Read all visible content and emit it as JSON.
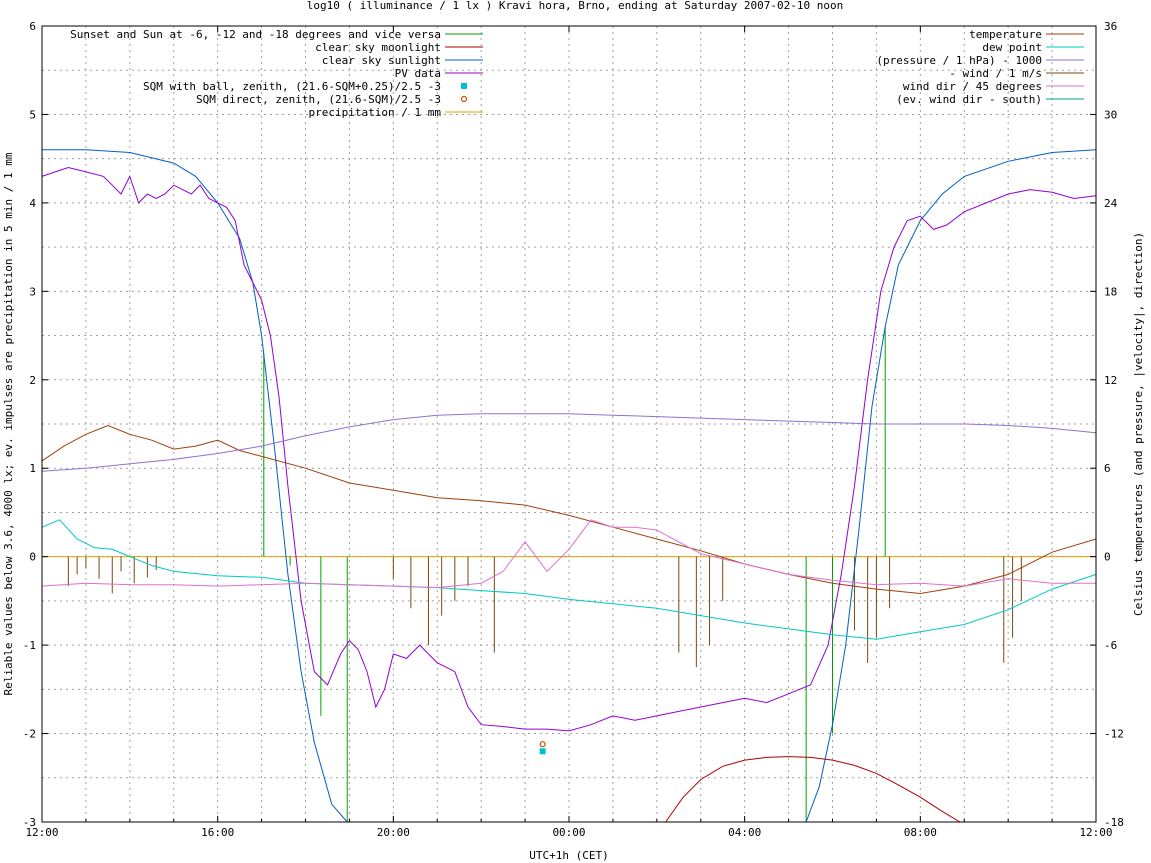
{
  "chart_data": {
    "type": "line",
    "title": "log10 ( illuminance / 1 lx ) Kravi hora, Brno, ending at Saturday 2007-02-10 noon",
    "xlabel": "UTC+1h (CET)",
    "ylabel_left": "Reliable values below 3.6, 4000 lx; ev. impulses are precipitation in 5 min / 1 mm",
    "ylabel_right": "Celsius temperatures (and pressure, |velocity|, direction)",
    "x_unit": "hours since 12:00",
    "xlim": [
      0,
      24
    ],
    "ylim_left": [
      -3,
      6
    ],
    "ylim_right": [
      -18,
      36
    ],
    "x_ticks": [
      {
        "x": 0,
        "label": "12:00"
      },
      {
        "x": 4,
        "label": "16:00"
      },
      {
        "x": 8,
        "label": "20:00"
      },
      {
        "x": 12,
        "label": "00:00"
      },
      {
        "x": 16,
        "label": "04:00"
      },
      {
        "x": 20,
        "label": "08:00"
      },
      {
        "x": 24,
        "label": "12:00"
      }
    ],
    "y_ticks_left": [
      "-3",
      "-2",
      "-1",
      "0",
      "1",
      "2",
      "3",
      "4",
      "5",
      "6"
    ],
    "y_ticks_right": [
      "-18",
      "-12",
      "-6",
      "0",
      "6",
      "12",
      "18",
      "24",
      "30",
      "36"
    ],
    "grid": true,
    "legend_left": [
      {
        "name": "Sunset and Sun at -6, -12 and -18 degrees and vice versa",
        "color": "#00a000",
        "style": "line"
      },
      {
        "name": "clear sky moonlight",
        "color": "#b00000",
        "style": "line"
      },
      {
        "name": "clear sky sunlight",
        "color": "#0060c0",
        "style": "line"
      },
      {
        "name": "PV data",
        "color": "#9400d3",
        "style": "line"
      },
      {
        "name": "SQM with ball, zenith, (21.6-SQM+0.25)/2.5 -3",
        "color": "#00c0d0",
        "style": "square"
      },
      {
        "name": "SQM direct, zenith, (21.6-SQM)/2.5 -3",
        "color": "#c05000",
        "style": "circle"
      },
      {
        "name": "precipitation / 1 mm",
        "color": "#e0a000",
        "style": "line"
      }
    ],
    "legend_right": [
      {
        "name": "temperature",
        "color": "#a0400a",
        "style": "line"
      },
      {
        "name": "dew point",
        "color": "#00c8c8",
        "style": "line"
      },
      {
        "name": "(pressure / 1 hPa) - 1000",
        "color": "#9070d0",
        "style": "line"
      },
      {
        "name": "- wind / 1 m/s",
        "color": "#7a4a10",
        "style": "line"
      },
      {
        "name": "wind dir / 45 degrees",
        "color": "#e070d0",
        "style": "line"
      },
      {
        "name": "(ev. wind dir - south)",
        "color": "#00a090",
        "style": "line"
      }
    ],
    "sun_markers": [
      {
        "x": 5.05,
        "y": 2.3
      },
      {
        "x": 5.65,
        "y": -0.1
      },
      {
        "x": 6.35,
        "y": -1.8
      },
      {
        "x": 6.95,
        "y": -3
      },
      {
        "x": 17.4,
        "y": -3
      },
      {
        "x": 18.0,
        "y": -2.0
      },
      {
        "x": 18.6,
        "y": 0
      },
      {
        "x": 19.2,
        "y": 2.6
      }
    ],
    "series": [
      {
        "name": "clear sky sunlight",
        "axis": "left",
        "color": "#0060c0",
        "x": [
          0,
          1,
          2,
          3,
          3.5,
          4,
          4.5,
          4.8,
          5.0,
          5.3,
          5.6,
          5.9,
          6.2,
          6.6,
          6.95,
          7.0
        ],
        "y": [
          4.6,
          4.6,
          4.57,
          4.45,
          4.3,
          4.0,
          3.6,
          3.1,
          2.5,
          1.2,
          -0.2,
          -1.3,
          -2.1,
          -2.8,
          -3.0,
          -3.05
        ]
      },
      {
        "name": "clear sky sunlight",
        "axis": "left",
        "color": "#0060c0",
        "x": [
          17.4,
          17.7,
          18.0,
          18.3,
          18.6,
          18.9,
          19.2,
          19.5,
          20.0,
          20.5,
          21.0,
          22,
          23,
          24
        ],
        "y": [
          -3.05,
          -2.6,
          -1.9,
          -1.0,
          0.3,
          1.7,
          2.6,
          3.3,
          3.8,
          4.1,
          4.3,
          4.47,
          4.57,
          4.6
        ]
      },
      {
        "name": "clear sky moonlight",
        "axis": "left",
        "color": "#b00000",
        "x": [
          14.2,
          14.6,
          15.0,
          15.5,
          16.0,
          16.5,
          17.0,
          17.5,
          18.0,
          18.5,
          19.0,
          19.5,
          20.0,
          20.5,
          20.9
        ],
        "y": [
          -3.0,
          -2.72,
          -2.52,
          -2.37,
          -2.3,
          -2.27,
          -2.26,
          -2.27,
          -2.3,
          -2.36,
          -2.45,
          -2.58,
          -2.72,
          -2.88,
          -3.0
        ]
      },
      {
        "name": "PV data",
        "axis": "left",
        "color": "#9400d3",
        "x": [
          0,
          0.3,
          0.6,
          1.0,
          1.4,
          1.6,
          1.8,
          2.0,
          2.2,
          2.4,
          2.6,
          2.8,
          3.0,
          3.2,
          3.4,
          3.6,
          3.8,
          4.0,
          4.2,
          4.4,
          4.6,
          4.8,
          5.0,
          5.2,
          5.4,
          5.6,
          5.9,
          6.2,
          6.5,
          6.8,
          7.0,
          7.2,
          7.4,
          7.6,
          7.8,
          8.0,
          8.3,
          8.6,
          9.0,
          9.4,
          9.7,
          10.0,
          10.5,
          11.0,
          11.5,
          12.0,
          12.5,
          13.0,
          13.5,
          14.0,
          14.5,
          15.0,
          15.5,
          16.0,
          16.5,
          17.0,
          17.5,
          17.9,
          18.2,
          18.5,
          18.8,
          19.1,
          19.4,
          19.7,
          20.0,
          20.3,
          20.6,
          21.0,
          21.5,
          22.0,
          22.5,
          23.0,
          23.5,
          24.0
        ],
        "y": [
          4.3,
          4.35,
          4.4,
          4.35,
          4.3,
          4.2,
          4.1,
          4.3,
          4.0,
          4.1,
          4.05,
          4.1,
          4.2,
          4.15,
          4.1,
          4.2,
          4.05,
          4.0,
          3.95,
          3.8,
          3.3,
          3.1,
          2.9,
          2.5,
          1.8,
          0.8,
          -0.5,
          -1.3,
          -1.45,
          -1.1,
          -0.95,
          -1.05,
          -1.3,
          -1.7,
          -1.5,
          -1.1,
          -1.15,
          -1.0,
          -1.2,
          -1.3,
          -1.7,
          -1.9,
          -1.92,
          -1.95,
          -1.95,
          -1.97,
          -1.9,
          -1.8,
          -1.85,
          -1.8,
          -1.75,
          -1.7,
          -1.65,
          -1.6,
          -1.65,
          -1.55,
          -1.45,
          -1.0,
          -0.2,
          0.8,
          2.0,
          3.0,
          3.5,
          3.8,
          3.85,
          3.7,
          3.75,
          3.9,
          4.0,
          4.1,
          4.15,
          4.12,
          4.05,
          4.08
        ]
      },
      {
        "name": "temperature",
        "axis": "right",
        "color": "#a0400a",
        "x": [
          0,
          0.5,
          1.0,
          1.5,
          2.0,
          2.5,
          3.0,
          3.5,
          4.0,
          4.5,
          5.0,
          6.0,
          7.0,
          8.0,
          9.0,
          10.0,
          11.0,
          12.0,
          13.0,
          14.0,
          15.0,
          16.0,
          17.0,
          18.0,
          19.0,
          20.0,
          21.0,
          22.0,
          23.0,
          24.0
        ],
        "y": [
          6.5,
          7.5,
          8.3,
          8.9,
          8.3,
          7.9,
          7.3,
          7.5,
          7.9,
          7.2,
          6.8,
          6.0,
          5.0,
          4.5,
          4.0,
          3.8,
          3.5,
          2.8,
          2.0,
          1.2,
          0.4,
          -0.5,
          -1.2,
          -1.8,
          -2.2,
          -2.5,
          -2.0,
          -1.2,
          0.3,
          1.2
        ]
      },
      {
        "name": "dew point",
        "axis": "right",
        "color": "#00c8c8",
        "x": [
          0,
          0.4,
          0.8,
          1.2,
          1.6,
          2.0,
          2.5,
          3.0,
          4.0,
          5.0,
          6.0,
          7.0,
          8.0,
          9.0,
          10.0,
          11.0,
          12.0,
          13.0,
          14.0,
          15.0,
          16.0,
          17.0,
          18.0,
          19.0,
          20.0,
          21.0,
          22.0,
          23.0,
          24.0
        ],
        "y": [
          2.0,
          2.5,
          1.2,
          0.6,
          0.5,
          0.0,
          -0.6,
          -1.0,
          -1.3,
          -1.4,
          -1.8,
          -1.9,
          -2.0,
          -2.1,
          -2.3,
          -2.5,
          -2.9,
          -3.2,
          -3.5,
          -4.0,
          -4.5,
          -4.9,
          -5.3,
          -5.6,
          -5.1,
          -4.6,
          -3.6,
          -2.2,
          -1.2
        ]
      },
      {
        "name": "(pressure / 1 hPa) - 1000",
        "axis": "right",
        "color": "#9070d0",
        "x": [
          0,
          1,
          2,
          3,
          4,
          5,
          6,
          7,
          8,
          9,
          10,
          11,
          12,
          13,
          14,
          15,
          16,
          17,
          18,
          19,
          20,
          21,
          22,
          23,
          24
        ],
        "y": [
          5.8,
          6.0,
          6.3,
          6.6,
          7.0,
          7.5,
          8.2,
          8.8,
          9.3,
          9.6,
          9.7,
          9.7,
          9.7,
          9.6,
          9.5,
          9.4,
          9.3,
          9.2,
          9.1,
          9.0,
          9.0,
          9.0,
          8.9,
          8.7,
          8.4
        ]
      },
      {
        "name": "wind dir / 45 degrees",
        "axis": "right",
        "color": "#e070d0",
        "x": [
          0,
          1,
          2,
          3,
          4,
          5,
          6,
          7,
          8,
          9,
          10,
          10.5,
          11.0,
          11.5,
          12.0,
          12.5,
          13.0,
          13.5,
          14.0,
          14.5,
          15.0,
          16.0,
          17.0,
          18.0,
          19.0,
          20.0,
          21.0,
          22.0,
          23.0,
          24.0
        ],
        "y": [
          -2.0,
          -1.8,
          -1.9,
          -1.9,
          -2.0,
          -1.9,
          -1.8,
          -1.9,
          -2.0,
          -2.1,
          -1.8,
          -1.0,
          1.0,
          -1.0,
          0.5,
          2.5,
          2.0,
          2.0,
          1.8,
          1.0,
          0.2,
          -0.5,
          -1.2,
          -1.6,
          -1.9,
          -1.8,
          -2.0,
          -1.5,
          -1.8,
          -1.8
        ]
      }
    ],
    "wind_impulses": [
      {
        "x": 0.6,
        "y": -2.0
      },
      {
        "x": 0.8,
        "y": -1.2
      },
      {
        "x": 1.0,
        "y": -0.8
      },
      {
        "x": 1.3,
        "y": -1.5
      },
      {
        "x": 1.6,
        "y": -2.5
      },
      {
        "x": 1.8,
        "y": -1.0
      },
      {
        "x": 2.1,
        "y": -1.8
      },
      {
        "x": 2.4,
        "y": -1.4
      },
      {
        "x": 2.6,
        "y": -0.9
      },
      {
        "x": 8.0,
        "y": -1.5
      },
      {
        "x": 8.4,
        "y": -3.5
      },
      {
        "x": 8.8,
        "y": -6.0
      },
      {
        "x": 9.1,
        "y": -4.0
      },
      {
        "x": 9.4,
        "y": -3.0
      },
      {
        "x": 9.7,
        "y": -2.0
      },
      {
        "x": 10.3,
        "y": -6.5
      },
      {
        "x": 14.5,
        "y": -6.5
      },
      {
        "x": 14.9,
        "y": -7.5
      },
      {
        "x": 15.2,
        "y": -6.0
      },
      {
        "x": 15.5,
        "y": -3.0
      },
      {
        "x": 18.5,
        "y": -5.0
      },
      {
        "x": 18.8,
        "y": -7.2
      },
      {
        "x": 19.0,
        "y": -5.5
      },
      {
        "x": 19.3,
        "y": -3.5
      },
      {
        "x": 21.9,
        "y": -7.2
      },
      {
        "x": 22.1,
        "y": -5.5
      },
      {
        "x": 22.3,
        "y": -3.0
      }
    ],
    "sqm_ball": {
      "x": 11.4,
      "y": -2.2
    },
    "sqm_direct": {
      "x": 11.4,
      "y": -2.12
    }
  }
}
